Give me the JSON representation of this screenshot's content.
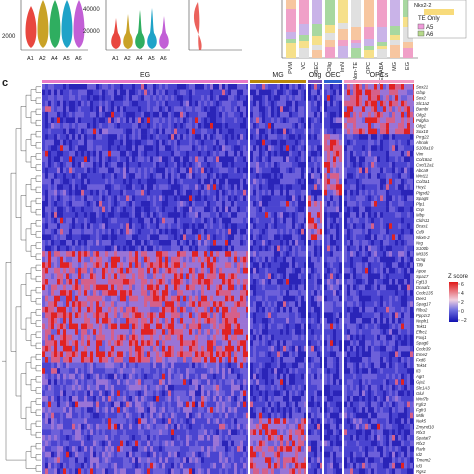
{
  "top_panels": {
    "left_ytick": "2000",
    "mid_ytick": "40000",
    "mid_ytick2": "20000",
    "violin_labels": [
      "A1",
      "A2",
      "A4",
      "A5",
      "A6"
    ],
    "violin_colors": [
      "#e8473f",
      "#c9a227",
      "#2fae60",
      "#1fa3c8",
      "#c25fd6"
    ],
    "bar_categories": [
      "PVM",
      "VC",
      "OEC",
      "Olig",
      "ImN",
      "Non-TE",
      "OPC",
      "TEGABA",
      "MG",
      "EG"
    ],
    "legend": {
      "title": "TE Only",
      "items": [
        "A5",
        "A6"
      ]
    },
    "legend_top_entry": "Nkx2-2"
  },
  "heatmap": {
    "panel_letter": "c",
    "groups": [
      "EG",
      "MG",
      "Olig",
      "OEC",
      "OPCs"
    ],
    "group_colors": {
      "EG": "#e879c7",
      "MG": "#b8860b",
      "Olig": "#7a4fbd",
      "OEC": "#2b5fcf",
      "OPCs": "#f49ac2"
    },
    "genes": [
      "Sox21",
      "Gfap",
      "Sox2",
      "Slc1a2",
      "Bambi",
      "Olig2",
      "Pdgfra",
      "Olig1",
      "Sox10",
      "Prrg22",
      "Ahnak",
      "S100a10",
      "Vim",
      "Col18a1",
      "Cxcl12a1",
      "Abca9",
      "Wnt11",
      "Col3a1",
      "Hey1",
      "Ptgsd2",
      "Spag5",
      "Plp1",
      "Cnp",
      "Mbp",
      "Cldn11",
      "Bcas1",
      "Cd9",
      "Nkx6-2",
      "Nrg",
      "S100b",
      "Mt335",
      "Gmg",
      "Tll9",
      "Apoe",
      "Spa17",
      "Fgf13",
      "Dnaaf1",
      "Ccdc135",
      "Dee1",
      "Spag17",
      "Rlbu2",
      "Ppp1r2",
      "Nnph1",
      "Tekt1",
      "Efhc1",
      "Foxj1",
      "Spag6",
      "Ccdc39",
      "Eme2",
      "Fxd6",
      "Tekt4",
      "Il3",
      "Agrt",
      "Gja1",
      "Slc1A3",
      "Glul",
      "Wnt7b",
      "Fgfr2",
      "Fgfr3",
      "Mdk",
      "Nek5",
      "Zmynd10",
      "Rfx3",
      "Spatat7",
      "Rfx2",
      "Rarb",
      "Id2",
      "Tmem2",
      "Id3",
      "Rgs1"
    ],
    "colorbar": {
      "title": "Z score",
      "ticks": [
        "6",
        "4",
        "2",
        "0",
        "−2"
      ]
    }
  },
  "colors": {
    "low": "#2020c8",
    "mid": "#6a5ed8",
    "high": "#e02020"
  }
}
